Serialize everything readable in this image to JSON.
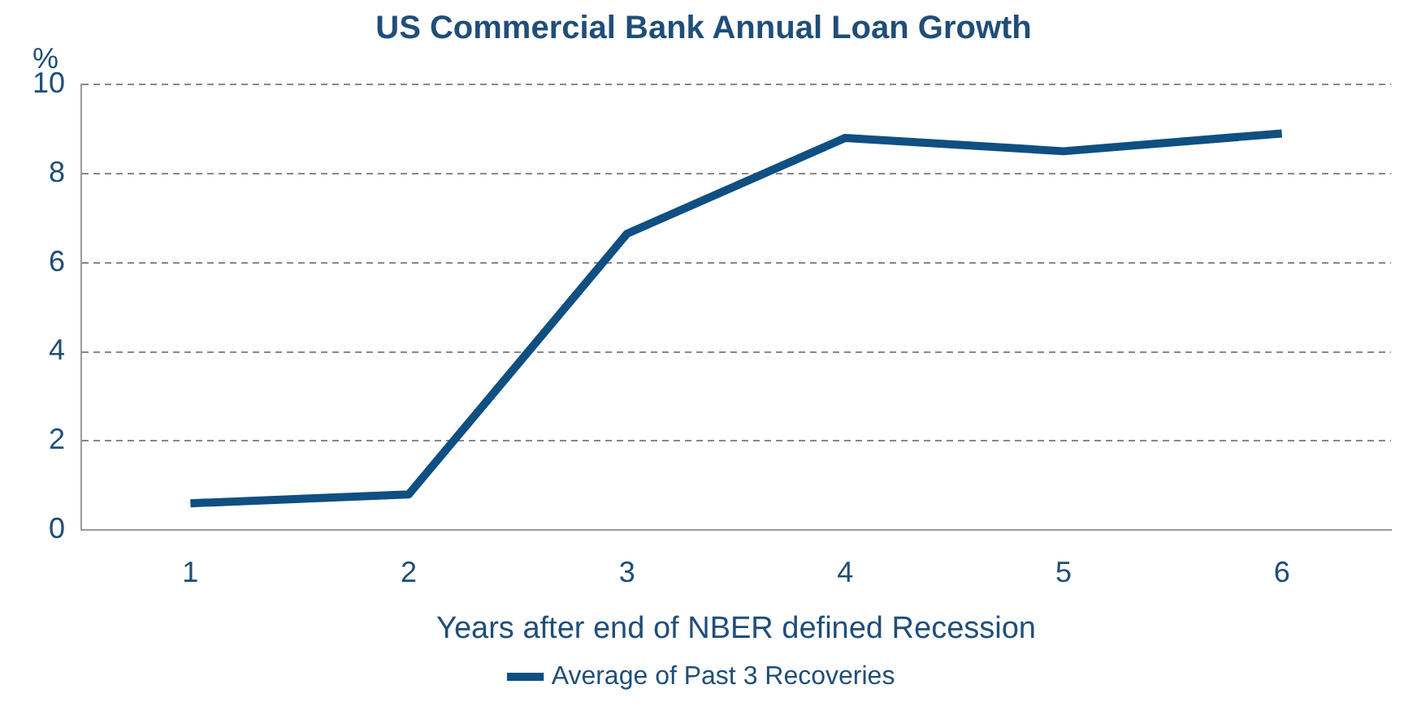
{
  "chart_data": {
    "type": "line",
    "title": "US Commercial Bank Annual Loan Growth",
    "xlabel": "Years after end of NBER defined Recession",
    "ylabel": "%",
    "categories": [
      "1",
      "2",
      "3",
      "4",
      "5",
      "6"
    ],
    "series": [
      {
        "name": "Average of Past 3 Recoveries",
        "color": "#0f4f82",
        "values": [
          0.6,
          0.8,
          6.65,
          8.8,
          8.5,
          8.9
        ]
      }
    ],
    "ylim": [
      0,
      10
    ],
    "yticks": [
      0,
      2,
      4,
      6,
      8,
      10
    ],
    "grid": "y",
    "legend": "bottom",
    "marker": "none",
    "line_style": "solid"
  }
}
